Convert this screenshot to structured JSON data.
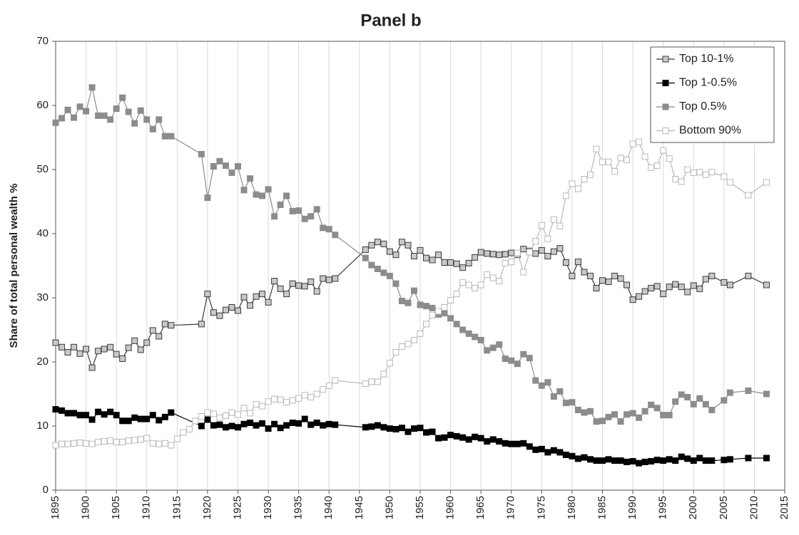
{
  "chart_data": {
    "type": "line",
    "title": "Panel b",
    "y_label": "Share of total personal wealth %",
    "xlim": [
      1895,
      2015
    ],
    "xticks": [
      1895,
      1900,
      1905,
      1910,
      1915,
      1920,
      1925,
      1930,
      1935,
      1940,
      1945,
      1950,
      1955,
      1960,
      1965,
      1970,
      1975,
      1980,
      1985,
      1990,
      1995,
      2000,
      2005,
      2010,
      2015
    ],
    "ylim": [
      0,
      70
    ],
    "yticks": [
      0,
      10,
      20,
      30,
      40,
      50,
      60,
      70
    ],
    "grid": "x",
    "legend": "top-right",
    "x": [
      1895,
      1896,
      1897,
      1898,
      1899,
      1900,
      1901,
      1902,
      1903,
      1904,
      1905,
      1906,
      1907,
      1908,
      1909,
      1910,
      1911,
      1912,
      1913,
      1914,
      1919,
      1920,
      1921,
      1922,
      1923,
      1924,
      1925,
      1926,
      1927,
      1928,
      1929,
      1930,
      1931,
      1932,
      1933,
      1934,
      1935,
      1936,
      1937,
      1938,
      1939,
      1940,
      1941,
      1946,
      1947,
      1948,
      1949,
      1950,
      1951,
      1952,
      1953,
      1954,
      1955,
      1956,
      1957,
      1958,
      1959,
      1960,
      1961,
      1962,
      1963,
      1964,
      1965,
      1966,
      1967,
      1968,
      1969,
      1970,
      1971,
      1972,
      1973,
      1974,
      1975,
      1976,
      1977,
      1978,
      1979,
      1980,
      1981,
      1982,
      1983,
      1984,
      1985,
      1986,
      1987,
      1988,
      1989,
      1990,
      1991,
      1992,
      1993,
      1994,
      1995,
      1996,
      1997,
      1998,
      1999,
      2000,
      2001,
      2002,
      2003,
      2005,
      2006,
      2009,
      2012
    ],
    "series": [
      {
        "name": "Top 10-1%",
        "color": "#3a3a3a",
        "marker_fill": "#c8c8c8",
        "values": [
          23,
          22.3,
          21.5,
          22.3,
          21.3,
          22,
          19.1,
          21.7,
          22,
          22.3,
          21.2,
          20.5,
          22.2,
          23.3,
          21.9,
          23,
          24.9,
          24,
          25.9,
          25.7,
          25.9,
          30.6,
          27.7,
          27.2,
          28.1,
          28.5,
          28,
          30.1,
          28.8,
          30.2,
          30.6,
          29.3,
          32.6,
          31.4,
          30.6,
          32.2,
          31.9,
          31.8,
          32.5,
          31,
          33,
          32.8,
          33,
          37.5,
          38.2,
          38.7,
          38.4,
          37.2,
          36.7,
          38.7,
          38.2,
          36.5,
          37.4,
          36.2,
          35.9,
          36.7,
          35.5,
          35.5,
          35.3,
          34.7,
          35.4,
          36.3,
          37.1,
          36.9,
          36.8,
          36.7,
          36.8,
          37,
          36.7,
          37.6,
          37.3,
          36.9,
          37.4,
          36.5,
          37.2,
          37.7,
          35.5,
          33.4,
          35.6,
          34,
          33.4,
          31.5,
          32.7,
          32.5,
          33.4,
          33,
          32,
          29.7,
          30.2,
          31,
          31.5,
          31.8,
          30.6,
          31.7,
          32.1,
          31.7,
          30.9,
          31.9,
          31.4,
          32.9,
          33.4,
          32.4,
          32,
          33.4,
          32
        ]
      },
      {
        "name": "Top 1-0.5%",
        "color": "#000000",
        "marker_fill": "#000000",
        "values": [
          12.6,
          12.4,
          12,
          12,
          11.7,
          11.7,
          11,
          12.2,
          11.8,
          12.2,
          11.7,
          10.8,
          10.8,
          11.3,
          11.1,
          11.1,
          11.7,
          10.9,
          11.4,
          12.1,
          10,
          11,
          10.1,
          10.2,
          9.8,
          10,
          9.8,
          10.3,
          10.5,
          10.1,
          10.4,
          9.6,
          10.3,
          9.7,
          10.1,
          10.5,
          10.4,
          11.1,
          10.2,
          10.5,
          10.1,
          10.3,
          10.2,
          9.8,
          9.9,
          10.1,
          9.8,
          9.6,
          9.5,
          9.7,
          9.1,
          9.6,
          9.7,
          9,
          9.1,
          8.1,
          8.2,
          8.6,
          8.4,
          8.2,
          7.9,
          8.3,
          8.1,
          7.6,
          7.9,
          7.6,
          7.3,
          7.2,
          7.2,
          7.3,
          6.8,
          6.3,
          6.4,
          5.9,
          6.2,
          5.9,
          5.5,
          5.3,
          4.9,
          5.1,
          4.8,
          4.6,
          4.6,
          4.8,
          4.6,
          4.6,
          4.4,
          4.5,
          4.2,
          4.4,
          4.5,
          4.7,
          4.6,
          4.8,
          4.6,
          5.2,
          4.9,
          4.6,
          5,
          4.6,
          4.6,
          4.7,
          4.8,
          5,
          5
        ]
      },
      {
        "name": "Top 0.5%",
        "color": "#8c8c8c",
        "marker_fill": "#8c8c8c",
        "values": [
          57.3,
          58,
          59.3,
          58.1,
          59.8,
          59.1,
          62.8,
          58.4,
          58.4,
          57.8,
          59.5,
          61.2,
          59,
          57.2,
          59.2,
          57.8,
          56.3,
          57.8,
          55.2,
          55.2,
          52.4,
          45.6,
          50.5,
          51.3,
          50.6,
          49.5,
          50.5,
          46.8,
          48.6,
          46.1,
          45.9,
          46.9,
          42.7,
          44.5,
          45.9,
          43.5,
          43.6,
          42.3,
          42.7,
          43.8,
          40.9,
          40.7,
          39.8,
          36.2,
          35.1,
          34.5,
          33.9,
          33.4,
          32.2,
          29.5,
          29.2,
          31.1,
          28.9,
          28.7,
          28.4,
          27.4,
          27.6,
          26.8,
          25.9,
          25,
          24.4,
          23.9,
          23.4,
          21.8,
          22.2,
          22.7,
          20.5,
          20.2,
          19.7,
          21.2,
          20.6,
          17.1,
          16.3,
          16.8,
          14.6,
          15.4,
          13.6,
          13.7,
          12.5,
          12.1,
          12.3,
          10.7,
          10.8,
          11.4,
          11.8,
          10.7,
          11.8,
          12,
          11.3,
          12.3,
          13.3,
          12.8,
          11.7,
          11.7,
          13.8,
          14.9,
          14.5,
          13.4,
          14.3,
          13.4,
          12.5,
          14,
          15.2,
          15.5,
          15
        ]
      },
      {
        "name": "Bottom 90%",
        "color": "#b8b8b8",
        "marker_fill": "#ffffff",
        "x": [
          1895,
          1896,
          1897,
          1898,
          1899,
          1900,
          1901,
          1902,
          1903,
          1904,
          1905,
          1906,
          1907,
          1908,
          1909,
          1910,
          1911,
          1912,
          1913,
          1914,
          1915,
          1916,
          1917,
          1918,
          1919,
          1920,
          1921,
          1922,
          1923,
          1924,
          1925,
          1926,
          1927,
          1928,
          1929,
          1930,
          1931,
          1932,
          1933,
          1934,
          1935,
          1936,
          1937,
          1938,
          1939,
          1940,
          1941,
          1946,
          1947,
          1948,
          1949,
          1950,
          1951,
          1952,
          1953,
          1954,
          1955,
          1956,
          1957,
          1958,
          1959,
          1960,
          1961,
          1962,
          1963,
          1964,
          1965,
          1966,
          1967,
          1968,
          1969,
          1970,
          1971,
          1972,
          1973,
          1974,
          1975,
          1976,
          1977,
          1978,
          1979,
          1980,
          1981,
          1982,
          1983,
          1984,
          1985,
          1986,
          1987,
          1988,
          1989,
          1990,
          1991,
          1992,
          1993,
          1994,
          1995,
          1996,
          1997,
          1998,
          1999,
          2000,
          2001,
          2002,
          2003,
          2005,
          2006,
          2009,
          2012
        ],
        "values": [
          7,
          7.2,
          7.2,
          7.3,
          7.4,
          7.3,
          7.2,
          7.5,
          7.6,
          7.7,
          7.5,
          7.5,
          7.7,
          7.8,
          7.9,
          8.1,
          7.3,
          7.2,
          7.3,
          7,
          8,
          9,
          9.5,
          10.8,
          11.5,
          12.1,
          11.9,
          11.3,
          11.6,
          12.1,
          11.8,
          12.8,
          12,
          13.4,
          13.1,
          13.8,
          14.2,
          14.1,
          13.7,
          14,
          14.3,
          14.8,
          14.5,
          15,
          15.7,
          16.3,
          17.1,
          16.6,
          16.9,
          16.9,
          18.1,
          19.8,
          21.5,
          22.4,
          22.8,
          23.4,
          24.4,
          25.9,
          27.3,
          27.9,
          28.5,
          29.6,
          30.6,
          32.4,
          32,
          31.5,
          32,
          33.6,
          33.1,
          32.6,
          35.4,
          35.6,
          37,
          34,
          37.1,
          38.8,
          41.3,
          39.2,
          42.2,
          41.2,
          45.9,
          47.8,
          47,
          48.5,
          49.2,
          53.2,
          51.2,
          51.2,
          49.7,
          51.8,
          51.5,
          54,
          54.3,
          52,
          50.3,
          50.6,
          53,
          51.7,
          48.5,
          48.1,
          50,
          49.5,
          49.6,
          49.2,
          49.6,
          48.9,
          48,
          46,
          48
        ]
      }
    ]
  }
}
